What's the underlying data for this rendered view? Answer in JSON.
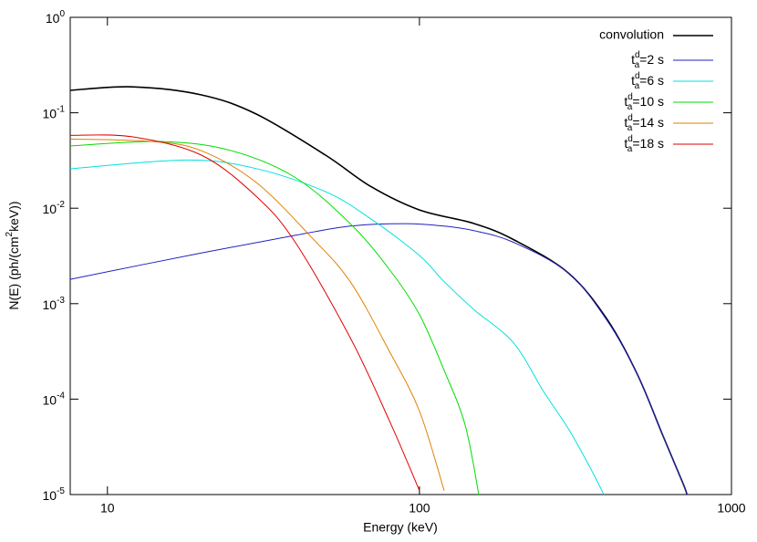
{
  "chart_data": {
    "type": "line",
    "xlabel": "Energy (keV)",
    "ylabel": "N(E) (ph/(cm^{2}keV))",
    "xscale": "log",
    "yscale": "log",
    "xlim": [
      7.6,
      1000
    ],
    "ylim": [
      1e-05,
      1
    ],
    "xticks": [
      10,
      100,
      1000
    ],
    "yticks": [
      {
        "value": 1,
        "label": "10^{0}"
      },
      {
        "value": 0.1,
        "label": "10^{-1}"
      },
      {
        "value": 0.01,
        "label": "10^{-2}"
      },
      {
        "value": 0.001,
        "label": "10^{-3}"
      },
      {
        "value": 0.0001,
        "label": "10^{-4}"
      },
      {
        "value": 1e-05,
        "label": "10^{-5}"
      }
    ],
    "legend": "top-right",
    "series": [
      {
        "name": "convolution",
        "color": "#000000",
        "x": [
          7.6,
          12,
          20,
          30,
          50,
          70,
          100,
          150,
          200,
          300,
          400,
          500,
          600,
          700,
          720
        ],
        "values": [
          0.172,
          0.187,
          0.154,
          0.097,
          0.036,
          0.0168,
          0.0096,
          0.0069,
          0.0047,
          0.0021,
          0.00068,
          0.00018,
          4.3e-05,
          1.3e-05,
          1e-05
        ]
      },
      {
        "name": "t^{d}_{a}=2 s",
        "color": "#2020c0",
        "x": [
          7.6,
          20,
          40,
          60,
          90,
          120,
          150,
          200,
          300,
          400,
          500,
          600,
          700,
          720
        ],
        "values": [
          0.0018,
          0.0034,
          0.0052,
          0.0065,
          0.0069,
          0.0065,
          0.0058,
          0.0044,
          0.0021,
          0.00066,
          0.00018,
          4.3e-05,
          1.3e-05,
          1e-05
        ]
      },
      {
        "name": "t^{d}_{a}=6 s",
        "color": "#00e0e0",
        "x": [
          7.6,
          18,
          30,
          50,
          70,
          100,
          120,
          150,
          200,
          250,
          300,
          350,
          390
        ],
        "values": [
          0.0259,
          0.032,
          0.026,
          0.0149,
          0.0077,
          0.0032,
          0.0017,
          0.00086,
          0.00039,
          0.00012,
          4.9e-05,
          2e-05,
          1e-05
        ]
      },
      {
        "name": "t^{d}_{a}=10 s",
        "color": "#00dd00",
        "x": [
          7.6,
          15,
          25,
          40,
          60,
          80,
          100,
          120,
          140,
          155
        ],
        "values": [
          0.045,
          0.05,
          0.04,
          0.021,
          0.0069,
          0.0023,
          0.00077,
          0.0002,
          5.4e-05,
          1e-05
        ]
      },
      {
        "name": "t^{d}_{a}=14 s",
        "color": "#e08000",
        "x": [
          7.6,
          14,
          20,
          30,
          45,
          60,
          80,
          100,
          120
        ],
        "values": [
          0.053,
          0.05,
          0.04,
          0.0186,
          0.005,
          0.0017,
          0.00032,
          7.5e-05,
          1.1e-05
        ]
      },
      {
        "name": "t^{d}_{a}=18 s",
        "color": "#e00000",
        "x": [
          7.6,
          12,
          20,
          30,
          40,
          60,
          80,
          100
        ],
        "values": [
          0.058,
          0.056,
          0.036,
          0.0133,
          0.0044,
          0.00044,
          6e-05,
          1.1e-05
        ]
      }
    ]
  }
}
